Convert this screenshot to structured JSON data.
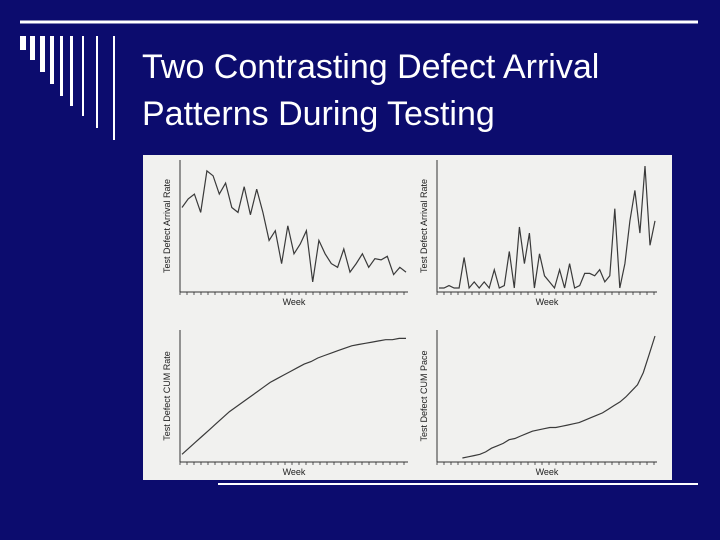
{
  "slide": {
    "title_lines": [
      "Two Contrasting Defect Arrival",
      "Patterns During Testing"
    ]
  },
  "chart_data": [
    {
      "type": "line",
      "xlabel": "Week",
      "ylabel": "Test Defect Arrival Rate",
      "color": "#3a3a3a",
      "ylim": [
        0,
        100
      ],
      "values": [
        66,
        73,
        77,
        62,
        96,
        92,
        77,
        86,
        66,
        62,
        83,
        60,
        81,
        62,
        39,
        47,
        20,
        51,
        28,
        36,
        47,
        5,
        39,
        28,
        20,
        17,
        32,
        13,
        20,
        28,
        17,
        24,
        23,
        26,
        11,
        17,
        13
      ]
    },
    {
      "type": "line",
      "xlabel": "Week",
      "ylabel": "Test Defect Arrival Rate",
      "color": "#3a3a3a",
      "ylim": [
        0,
        100
      ],
      "values": [
        0,
        0,
        2,
        0,
        0,
        25,
        0,
        5,
        0,
        5,
        0,
        15,
        0,
        2,
        30,
        0,
        50,
        20,
        45,
        0,
        28,
        10,
        5,
        0,
        15,
        0,
        20,
        0,
        2,
        12,
        12,
        10,
        15,
        5,
        10,
        65,
        0,
        20,
        55,
        80,
        45,
        100,
        35,
        55
      ]
    },
    {
      "type": "line",
      "xlabel": "Week",
      "ylabel": "Test Defect CUM Rate",
      "color": "#3a3a3a",
      "ylim": [
        0,
        100
      ],
      "values": [
        3,
        8,
        13,
        18,
        23,
        28,
        33,
        38,
        42,
        46,
        50,
        54,
        58,
        62,
        65,
        68,
        71,
        74,
        77,
        79,
        82,
        84,
        86,
        88,
        90,
        92,
        93,
        94,
        95,
        96,
        97,
        97,
        98,
        98
      ]
    },
    {
      "type": "line",
      "xlabel": "Week",
      "ylabel": "Test Defect CUM Pace",
      "color": "#3a3a3a",
      "ylim": [
        0,
        100
      ],
      "values": [
        null,
        null,
        null,
        null,
        0,
        1,
        2,
        3,
        5,
        8,
        10,
        12,
        15,
        16,
        18,
        20,
        22,
        23,
        24,
        25,
        25,
        26,
        27,
        28,
        29,
        31,
        33,
        35,
        37,
        40,
        43,
        46,
        50,
        55,
        60,
        70,
        85,
        100
      ]
    }
  ]
}
